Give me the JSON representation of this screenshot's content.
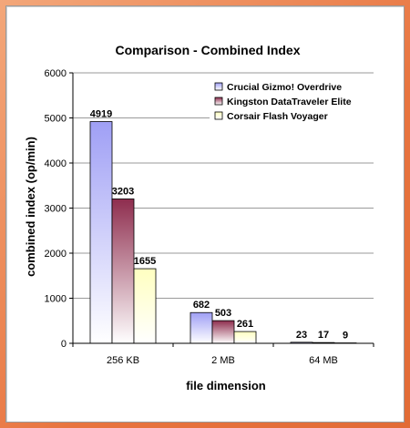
{
  "chart_data": {
    "type": "bar",
    "title": "Comparison - Combined Index",
    "xlabel": "file dimension",
    "ylabel": "combined index (op/min)",
    "categories": [
      "256 KB",
      "2 MB",
      "64 MB"
    ],
    "ylim": [
      0,
      6000
    ],
    "yticks": [
      0,
      1000,
      2000,
      3000,
      4000,
      5000,
      6000
    ],
    "grid": true,
    "legend_position": "top-right",
    "series": [
      {
        "name": "Crucial Gizmo! Overdrive",
        "values": [
          4919,
          682,
          23
        ],
        "color_top": "#9f9ff5",
        "color_bottom": "#ffffff"
      },
      {
        "name": "Kingston DataTraveler Elite",
        "values": [
          3203,
          503,
          17
        ],
        "color_top": "#8e2d4e",
        "color_bottom": "#ffffff"
      },
      {
        "name": "Corsair Flash Voyager",
        "values": [
          1655,
          261,
          9
        ],
        "color_top": "#ffffc0",
        "color_bottom": "#ffffff"
      }
    ]
  }
}
